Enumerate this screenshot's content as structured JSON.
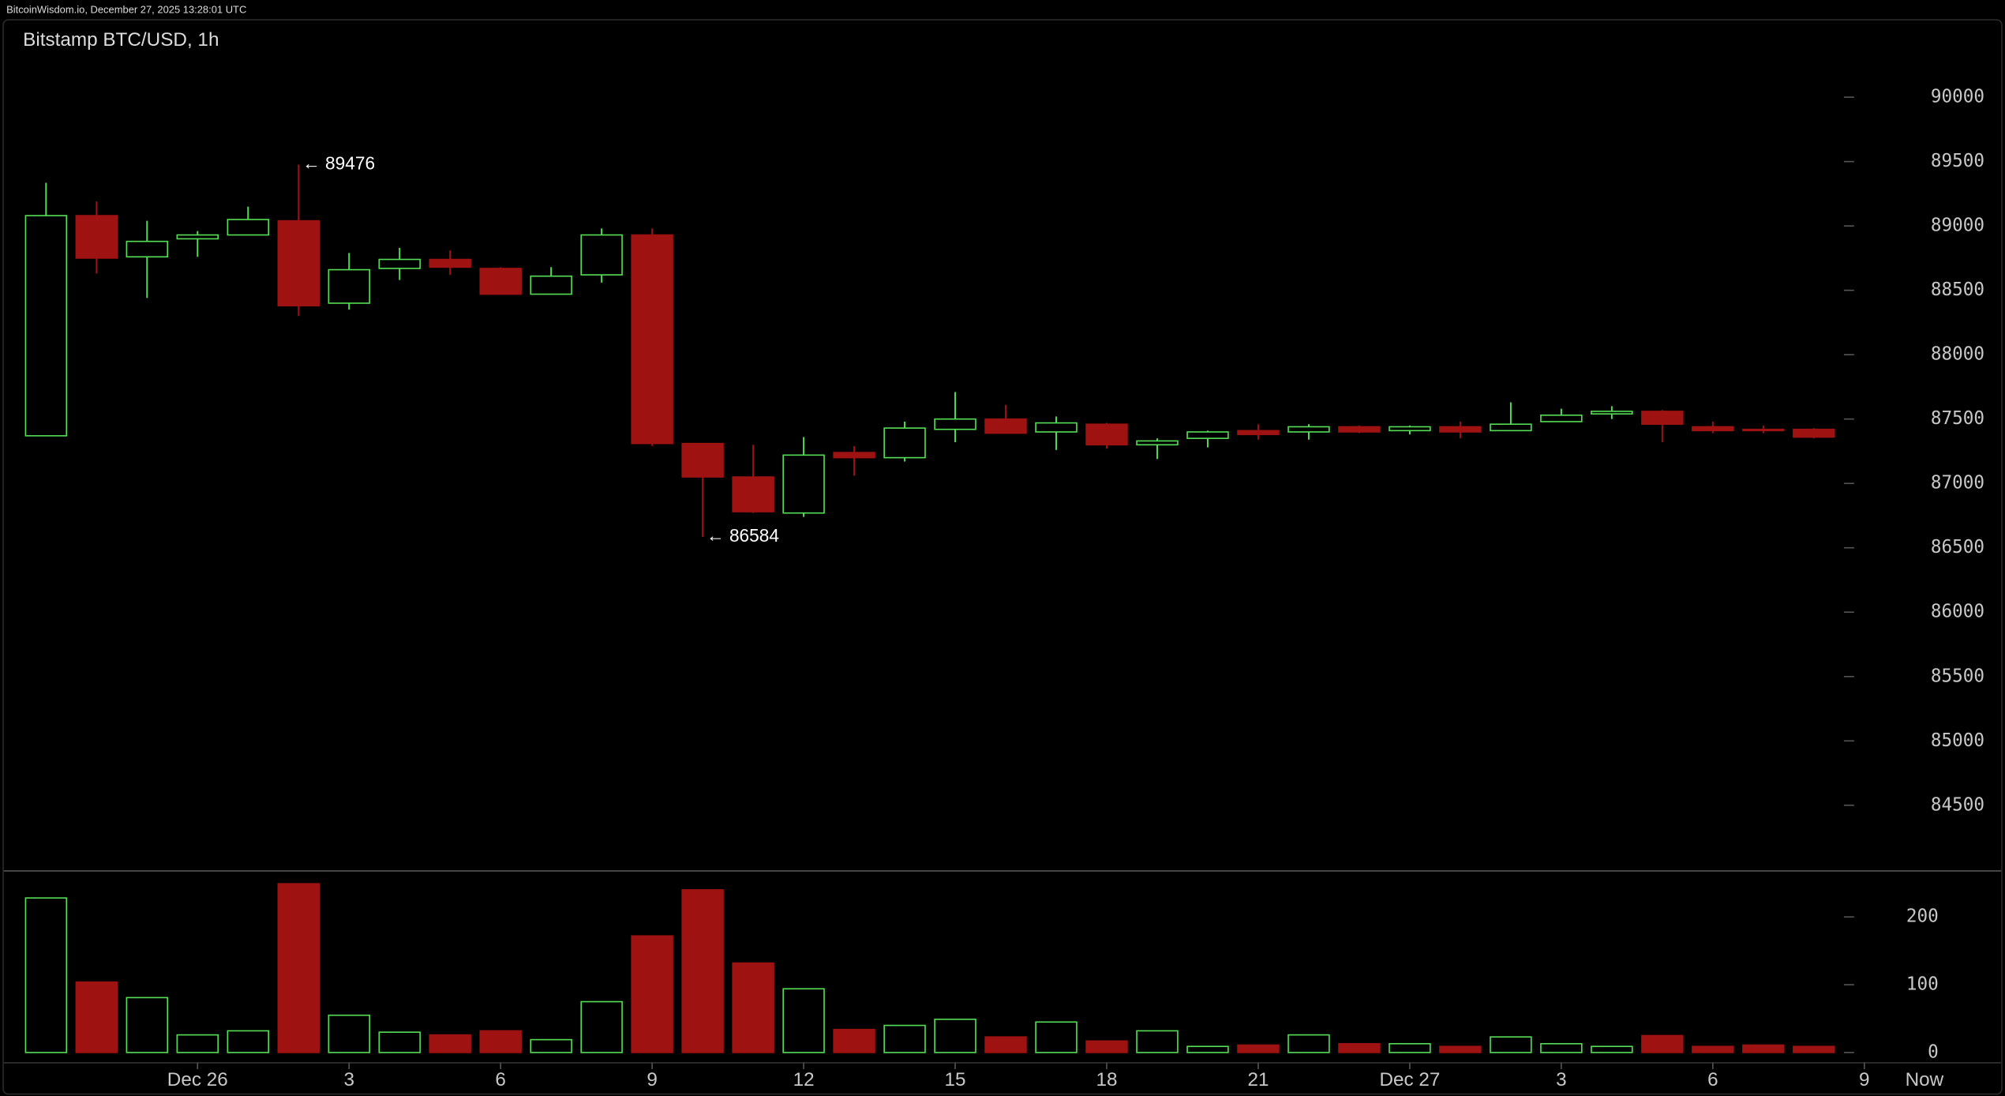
{
  "header": {
    "text": "BitcoinWisdom.io, December 27, 2025 13:28:01 UTC"
  },
  "chart_data": {
    "type": "candlestick",
    "title": "Bitstamp BTC/USD, 1h",
    "open": [
      87370,
      89080,
      88760,
      88900,
      88930,
      89040,
      88400,
      88670,
      88740,
      88670,
      88470,
      88620,
      88930,
      87310,
      87050,
      86770,
      87240,
      87200,
      87420,
      87500,
      87400,
      87460,
      87300,
      87350,
      87410,
      87400,
      87440,
      87410,
      87440,
      87410,
      87480,
      87540,
      87560,
      87440,
      87420,
      87420
    ],
    "high": [
      89335,
      89190,
      89040,
      88960,
      89150,
      89476,
      88790,
      88830,
      88810,
      88680,
      88680,
      88980,
      88980,
      87310,
      87300,
      87360,
      87290,
      87480,
      87710,
      87610,
      87520,
      87470,
      87350,
      87410,
      87460,
      87460,
      87450,
      87450,
      87480,
      87630,
      87580,
      87600,
      87570,
      87480,
      87450,
      87430
    ],
    "low": [
      87370,
      88630,
      88440,
      88760,
      88930,
      88300,
      88350,
      88580,
      88620,
      88470,
      88470,
      88560,
      87290,
      86584,
      86770,
      86740,
      87060,
      87170,
      87320,
      87390,
      87260,
      87270,
      87190,
      87280,
      87340,
      87340,
      87390,
      87380,
      87350,
      87410,
      87480,
      87500,
      87320,
      87390,
      87390,
      87350
    ],
    "close": [
      89080,
      88750,
      88880,
      88930,
      89050,
      88380,
      88660,
      88740,
      88680,
      88470,
      88610,
      88930,
      87310,
      87050,
      86780,
      87220,
      87200,
      87430,
      87500,
      87390,
      87470,
      87300,
      87330,
      87400,
      87380,
      87440,
      87400,
      87440,
      87400,
      87460,
      87530,
      87560,
      87460,
      87410,
      87410,
      87360
    ],
    "volume": [
      228,
      104,
      81,
      26,
      32,
      249,
      55,
      30,
      26,
      32,
      19,
      75,
      172,
      240,
      132,
      94,
      34,
      40,
      49,
      23,
      45,
      17,
      32,
      9,
      11,
      26,
      13,
      13,
      9,
      23,
      13,
      9,
      25,
      9,
      11,
      9
    ],
    "up_color": "#55dd55",
    "down_color": "#9e1212",
    "annotations": [
      "← 89476",
      "← 86584"
    ],
    "ylim": [
      84000,
      90300
    ],
    "yticks": [
      84500,
      85000,
      85500,
      86000,
      86500,
      87000,
      87500,
      88000,
      88500,
      89000,
      89500,
      90000
    ],
    "volume_ylim": [
      0,
      266
    ],
    "volume_yticks": [
      0,
      100,
      200
    ],
    "xticks": [
      {
        "value": 3,
        "label": "Dec 26"
      },
      {
        "value": 6,
        "label": "3"
      },
      {
        "value": 9,
        "label": "6"
      },
      {
        "value": 12,
        "label": "9"
      },
      {
        "value": 15,
        "label": "12"
      },
      {
        "value": 18,
        "label": "15"
      },
      {
        "value": 21,
        "label": "18"
      },
      {
        "value": 24,
        "label": "21"
      },
      {
        "value": 27,
        "label": "Dec 27"
      },
      {
        "value": 30,
        "label": "3"
      },
      {
        "value": 33,
        "label": "6"
      },
      {
        "value": 36,
        "label": "9"
      }
    ],
    "x_end_label": "Now"
  }
}
